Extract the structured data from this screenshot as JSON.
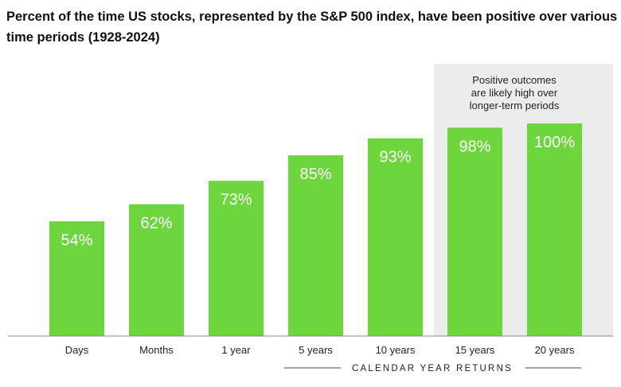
{
  "chart_data": {
    "type": "bar",
    "title": "Percent of the time US stocks, represented by the S&P 500 index, have been positive over various time periods (1928-2024)",
    "categories": [
      "Days",
      "Months",
      "1 year",
      "5 years",
      "10 years",
      "15 years",
      "20 years"
    ],
    "values": [
      54,
      62,
      73,
      85,
      93,
      98,
      100
    ],
    "value_labels": [
      "54%",
      "62%",
      "73%",
      "85%",
      "93%",
      "98%",
      "100%"
    ],
    "xlabel": "CALENDAR YEAR RETURNS",
    "ylabel": "",
    "ylim": [
      0,
      100
    ],
    "grid": false,
    "highlight": {
      "categories": [
        "15 years",
        "20 years"
      ],
      "note_lines": [
        "Positive outcomes",
        "are likely high over",
        "longer-term periods"
      ]
    },
    "colors": {
      "bar": "#6dd63c",
      "highlight_bg": "#ececec",
      "axis": "#8a8a8a"
    }
  }
}
